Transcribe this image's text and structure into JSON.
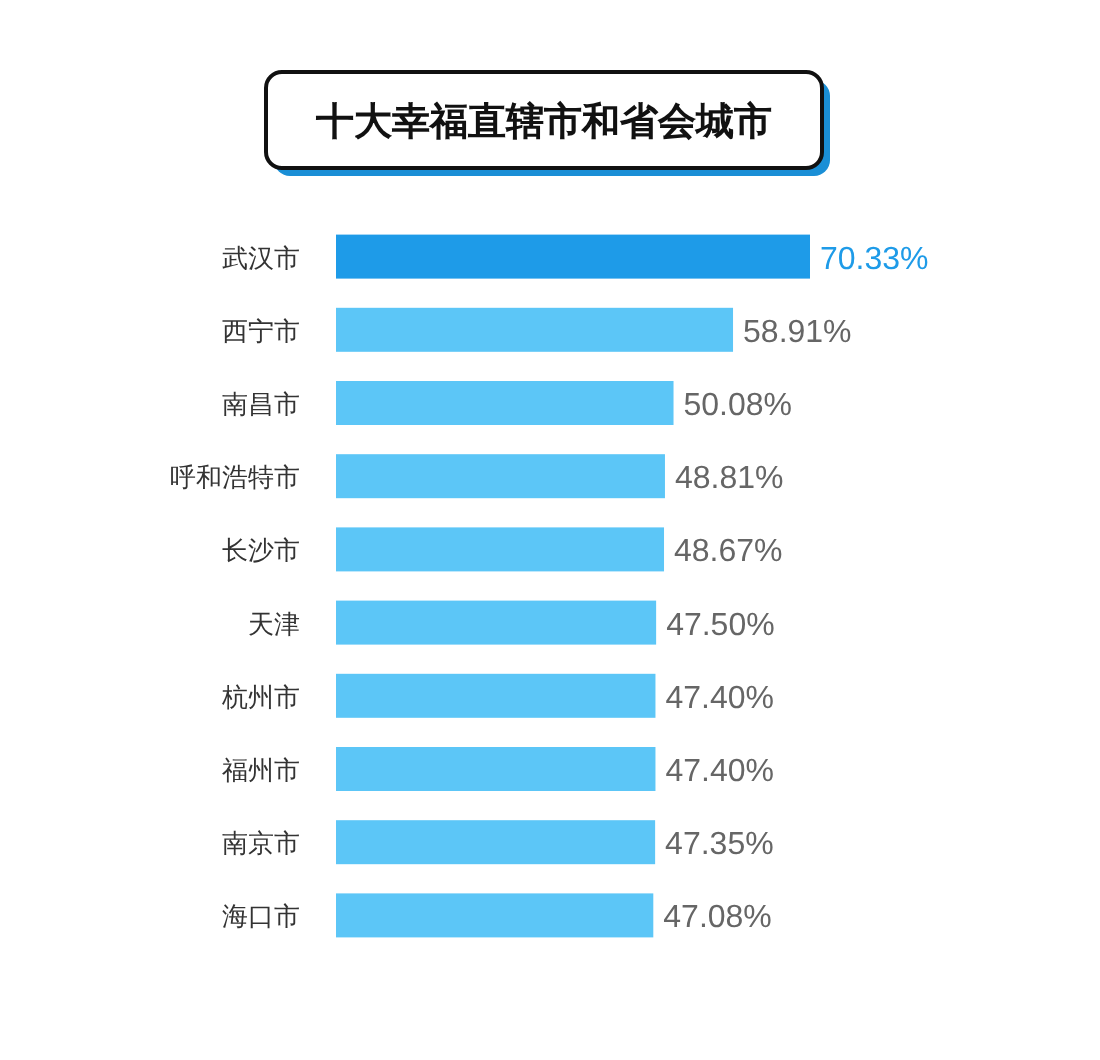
{
  "chart_data": {
    "type": "bar",
    "orientation": "horizontal",
    "title": "十大幸福直辖市和省会城市",
    "categories": [
      "武汉市",
      "西宁市",
      "南昌市",
      "呼和浩特市",
      "长沙市",
      "天津",
      "杭州市",
      "福州市",
      "南京市",
      "海口市"
    ],
    "values": [
      70.33,
      58.91,
      50.08,
      48.81,
      48.67,
      47.5,
      47.4,
      47.4,
      47.35,
      47.08
    ],
    "value_labels": [
      "70.33%",
      "58.91%",
      "50.08%",
      "48.81%",
      "48.67%",
      "47.50%",
      "47.40%",
      "47.40%",
      "47.35%",
      "47.08%"
    ],
    "colors": [
      "#1e9be8",
      "#5cc6f7",
      "#5cc6f7",
      "#5cc6f7",
      "#5cc6f7",
      "#5cc6f7",
      "#5cc6f7",
      "#5cc6f7",
      "#5cc6f7",
      "#5cc6f7"
    ],
    "tick_labels": "y"
  }
}
